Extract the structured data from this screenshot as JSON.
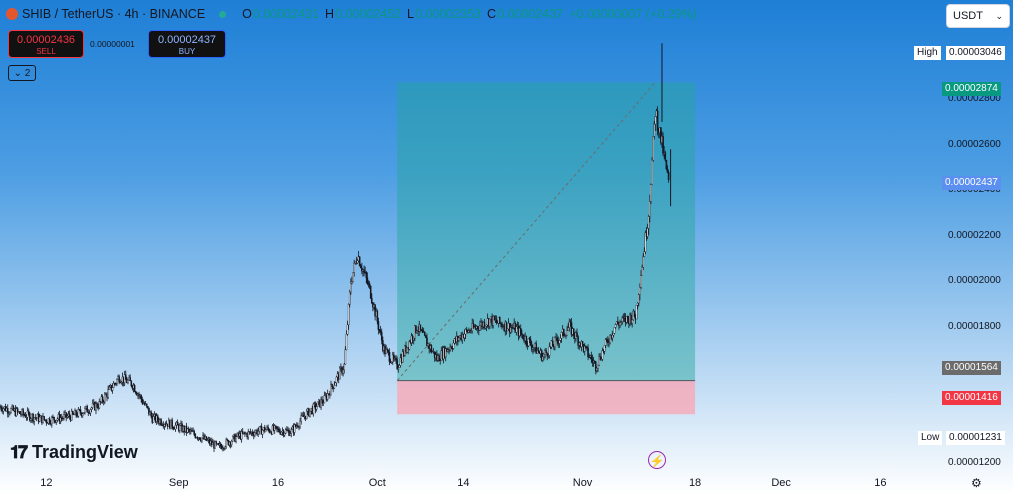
{
  "header": {
    "symbol": "SHIB / TetherUS · 4h · BINANCE",
    "o_label": "O",
    "o_value": "0.00002431",
    "h_label": "H",
    "h_value": "0.00002452",
    "l_label": "L",
    "l_value": "0.00002353",
    "c_label": "C",
    "c_value": "0.00002437",
    "change": "+0.00000007 (+0.29%)"
  },
  "trade": {
    "sell_price": "0.00002436",
    "sell_label": "SELL",
    "spread": "0.00000001",
    "buy_price": "0.00002437",
    "buy_label": "BUY"
  },
  "indicators_toggle": "2",
  "currency": {
    "selected": "USDT"
  },
  "price_tags": {
    "high_label": "High",
    "high_value": "0.00003046",
    "target_value": "0.00002874",
    "last_value": "0.00002437",
    "entry_value": "0.00001564",
    "stop_value": "0.00001416",
    "low_label": "Low",
    "low_value": "0.00001231"
  },
  "y_ticks": [
    "0.00003000",
    "0.00002800",
    "0.00002600",
    "0.00002400",
    "0.00002200",
    "0.00002000",
    "0.00001800",
    "0.00001600",
    "0.00001200"
  ],
  "x_ticks": [
    "12",
    "Sep",
    "16",
    "Oct",
    "14",
    "Nov",
    "18",
    "Dec",
    "16"
  ],
  "branding": {
    "name": "TradingView"
  },
  "colors": {
    "up": "#089981",
    "down": "#f23645",
    "profit_zone": "#26a69a",
    "loss_zone": "#f7a9b8",
    "last_price": "#2962ff",
    "target": "#089981"
  },
  "chart_data": {
    "type": "candlestick",
    "symbol": "SHIB/USDT",
    "timeframe": "4h",
    "ylim": [
      1.18e-05,
      3.06e-05
    ],
    "x_range": [
      "2024-08-05",
      "2024-12-25"
    ],
    "closes": [
      [
        "2024-08-05",
        1.45e-05
      ],
      [
        "2024-08-08",
        1.42e-05
      ],
      [
        "2024-08-12",
        1.39e-05
      ],
      [
        "2024-08-16",
        1.41e-05
      ],
      [
        "2024-08-20",
        1.46e-05
      ],
      [
        "2024-08-23",
        1.58e-05
      ],
      [
        "2024-08-25",
        1.55e-05
      ],
      [
        "2024-08-28",
        1.4e-05
      ],
      [
        "2024-09-01",
        1.36e-05
      ],
      [
        "2024-09-04",
        1.32e-05
      ],
      [
        "2024-09-07",
        1.27e-05
      ],
      [
        "2024-09-10",
        1.32e-05
      ],
      [
        "2024-09-14",
        1.35e-05
      ],
      [
        "2024-09-18",
        1.34e-05
      ],
      [
        "2024-09-20",
        1.41e-05
      ],
      [
        "2024-09-23",
        1.48e-05
      ],
      [
        "2024-09-26",
        1.63e-05
      ],
      [
        "2024-09-27",
        2e-05
      ],
      [
        "2024-09-28",
        2.12e-05
      ],
      [
        "2024-09-30",
        1.95e-05
      ],
      [
        "2024-10-02",
        1.7e-05
      ],
      [
        "2024-10-04",
        1.63e-05
      ],
      [
        "2024-10-07",
        1.8e-05
      ],
      [
        "2024-10-10",
        1.66e-05
      ],
      [
        "2024-10-14",
        1.77e-05
      ],
      [
        "2024-10-18",
        1.83e-05
      ],
      [
        "2024-10-22",
        1.79e-05
      ],
      [
        "2024-10-26",
        1.67e-05
      ],
      [
        "2024-10-30",
        1.8e-05
      ],
      [
        "2024-11-03",
        1.63e-05
      ],
      [
        "2024-11-06",
        1.81e-05
      ],
      [
        "2024-11-09",
        1.85e-05
      ],
      [
        "2024-11-11",
        2.3e-05
      ],
      [
        "2024-11-12",
        2.75e-05
      ],
      [
        "2024-11-13",
        2.6e-05
      ],
      [
        "2024-11-14",
        2.43e-05
      ]
    ],
    "high": 3.046e-05,
    "low": 1.231e-05,
    "last": 2.437e-05,
    "position": {
      "type": "long",
      "entry": 1.564e-05,
      "target": 2.874e-05,
      "stop": 1.416e-05,
      "start": "2024-10-04",
      "end": "2024-11-18"
    }
  }
}
